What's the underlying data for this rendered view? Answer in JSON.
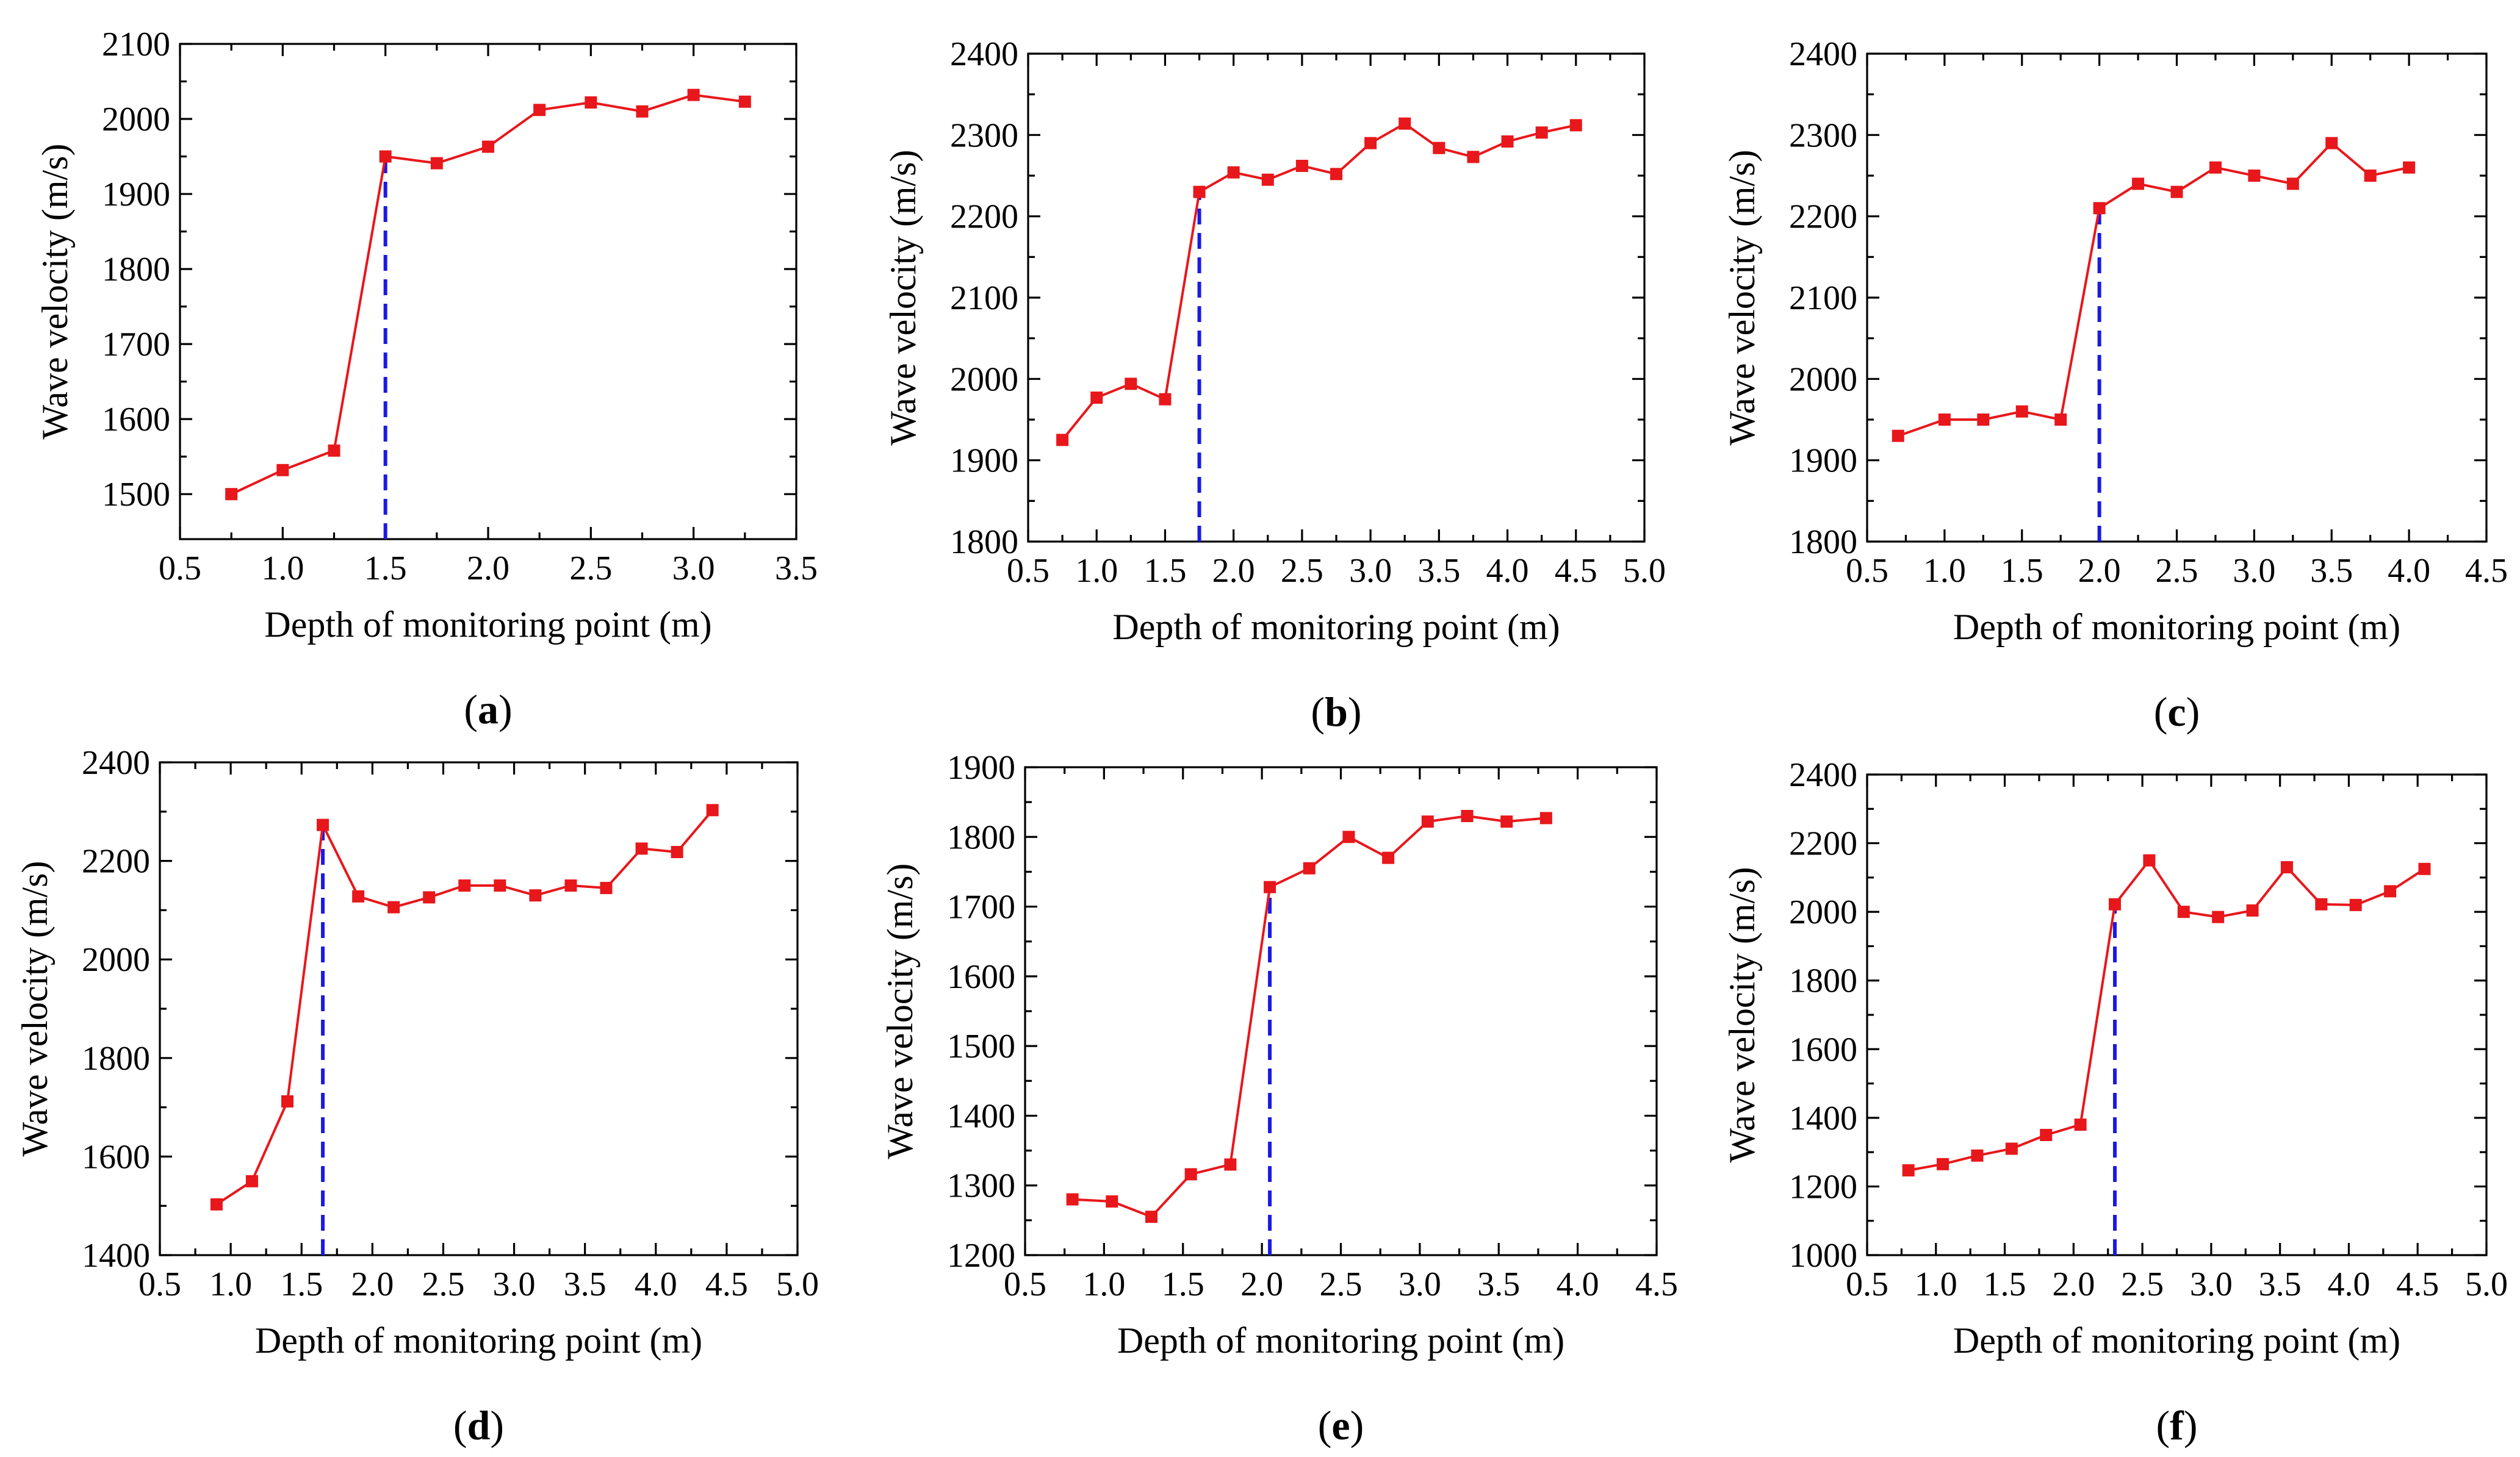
{
  "figure": {
    "colors": {
      "series": "#e8171b",
      "threshold": "#1a1ae6",
      "axes": "#000000"
    }
  },
  "chart_data": [
    {
      "type": "line",
      "panel": "a",
      "panel_label": {
        "open": "(",
        "letter": "a",
        "close": ")"
      },
      "xlabel": "Depth of monitoring point (m)",
      "ylabel": "Wave velocity (m/s)",
      "xlim": [
        0.5,
        3.5
      ],
      "ylim": [
        1440,
        2100
      ],
      "xticks": [
        "0.5",
        "1.0",
        "1.5",
        "2.0",
        "2.5",
        "3.0",
        "3.5"
      ],
      "yticks": [
        "1500",
        "1600",
        "1700",
        "1800",
        "1900",
        "2000",
        "2100"
      ],
      "x": [
        0.75,
        1.0,
        1.25,
        1.5,
        1.75,
        2.0,
        2.25,
        2.5,
        2.75,
        3.0,
        3.25
      ],
      "y": [
        1500,
        1532,
        1558,
        1950,
        1941,
        1963,
        2012,
        2022,
        2010,
        2032,
        2023
      ],
      "threshold_x": 1.5,
      "threshold_y": 1950
    },
    {
      "type": "line",
      "panel": "b",
      "panel_label": {
        "open": "(",
        "letter": "b",
        "close": ")"
      },
      "xlabel": "Depth of monitoring point (m)",
      "ylabel": "Wave velocity (m/s)",
      "xlim": [
        0.5,
        5.0
      ],
      "ylim": [
        1800,
        2400
      ],
      "xticks": [
        "0.5",
        "1.0",
        "1.5",
        "2.0",
        "2.5",
        "3.0",
        "3.5",
        "4.0",
        "4.5",
        "5.0"
      ],
      "yticks": [
        "1800",
        "1900",
        "2000",
        "2100",
        "2200",
        "2300",
        "2400"
      ],
      "x": [
        0.75,
        1.0,
        1.25,
        1.5,
        1.75,
        2.0,
        2.25,
        2.5,
        2.75,
        3.0,
        3.25,
        3.5,
        3.75,
        4.0,
        4.25,
        4.5
      ],
      "y": [
        1925,
        1977,
        1994,
        1975,
        2230,
        2254,
        2245,
        2262,
        2252,
        2290,
        2314,
        2284,
        2273,
        2292,
        2303,
        2312
      ],
      "threshold_x": 1.75,
      "threshold_y": 2230
    },
    {
      "type": "line",
      "panel": "c",
      "panel_label": {
        "open": "(",
        "letter": "c",
        "close": ")"
      },
      "xlabel": "Depth of monitoring point (m)",
      "ylabel": "Wave velocity (m/s)",
      "xlim": [
        0.5,
        4.5
      ],
      "ylim": [
        1800,
        2400
      ],
      "xticks": [
        "0.5",
        "1.0",
        "1.5",
        "2.0",
        "2.5",
        "3.0",
        "3.5",
        "4.0",
        "4.5"
      ],
      "yticks": [
        "1800",
        "1900",
        "2000",
        "2100",
        "2200",
        "2300",
        "2400"
      ],
      "x": [
        0.7,
        1.0,
        1.25,
        1.5,
        1.75,
        2.0,
        2.25,
        2.5,
        2.75,
        3.0,
        3.25,
        3.5,
        3.75,
        4.0
      ],
      "y": [
        1930,
        1950,
        1950,
        1960,
        1950,
        2210,
        2240,
        2230,
        2260,
        2250,
        2240,
        2290,
        2250,
        2260
      ],
      "threshold_x": 2.0,
      "threshold_y": 2210
    },
    {
      "type": "line",
      "panel": "d",
      "panel_label": {
        "open": "(",
        "letter": "d",
        "close": ")"
      },
      "xlabel": "Depth of monitoring point (m)",
      "ylabel": "Wave velocity (m/s)",
      "xlim": [
        0.5,
        5.0
      ],
      "ylim": [
        1400,
        2400
      ],
      "xticks": [
        "0.5",
        "1.0",
        "1.5",
        "2.0",
        "2.5",
        "3.0",
        "3.5",
        "4.0",
        "4.5",
        "5.0"
      ],
      "yticks": [
        "1400",
        "1600",
        "1800",
        "2000",
        "2200",
        "2400"
      ],
      "x": [
        0.9,
        1.15,
        1.4,
        1.65,
        1.9,
        2.15,
        2.4,
        2.65,
        2.9,
        3.15,
        3.4,
        3.65,
        3.9,
        4.15,
        4.4
      ],
      "y": [
        1503,
        1550,
        1712,
        2273,
        2128,
        2106,
        2126,
        2150,
        2150,
        2130,
        2150,
        2145,
        2225,
        2218,
        2303
      ],
      "threshold_x": 1.65,
      "threshold_y": 2273
    },
    {
      "type": "line",
      "panel": "e",
      "panel_label": {
        "open": "(",
        "letter": "e",
        "close": ")"
      },
      "xlabel": "Depth of monitoring point (m)",
      "ylabel": "Wave velocity (m/s)",
      "xlim": [
        0.5,
        4.5
      ],
      "ylim": [
        1200,
        1900
      ],
      "xticks": [
        "0.5",
        "1.0",
        "1.5",
        "2.0",
        "2.5",
        "3.0",
        "3.5",
        "4.0",
        "4.5"
      ],
      "yticks": [
        "1200",
        "1300",
        "1400",
        "1500",
        "1600",
        "1700",
        "1800",
        "1900"
      ],
      "x": [
        0.8,
        1.05,
        1.3,
        1.55,
        1.8,
        2.05,
        2.3,
        2.55,
        2.8,
        3.05,
        3.3,
        3.55,
        3.8
      ],
      "y": [
        1280,
        1277,
        1255,
        1316,
        1330,
        1728,
        1755,
        1800,
        1770,
        1822,
        1830,
        1822,
        1827
      ],
      "threshold_x": 2.05,
      "threshold_y": 1728
    },
    {
      "type": "line",
      "panel": "f",
      "panel_label": {
        "open": "(",
        "letter": "f",
        "close": ")"
      },
      "xlabel": "Depth of monitoring point (m)",
      "ylabel": "Wave velocity (m/s)",
      "xlim": [
        0.5,
        5.0
      ],
      "ylim": [
        1000,
        2400
      ],
      "xticks": [
        "0.5",
        "1.0",
        "1.5",
        "2.0",
        "2.5",
        "3.0",
        "3.5",
        "4.0",
        "4.5",
        "5.0"
      ],
      "yticks": [
        "1000",
        "1200",
        "1400",
        "1600",
        "1800",
        "2000",
        "2200",
        "2400"
      ],
      "x": [
        0.8,
        1.05,
        1.3,
        1.55,
        1.8,
        2.05,
        2.3,
        2.55,
        2.8,
        3.05,
        3.3,
        3.55,
        3.8,
        4.05,
        4.3,
        4.55
      ],
      "y": [
        1247,
        1265,
        1290,
        1310,
        1350,
        1380,
        2022,
        2150,
        2000,
        1985,
        2004,
        2130,
        2022,
        2020,
        2060,
        2125
      ],
      "threshold_x": 2.3,
      "threshold_y": 2022
    }
  ]
}
